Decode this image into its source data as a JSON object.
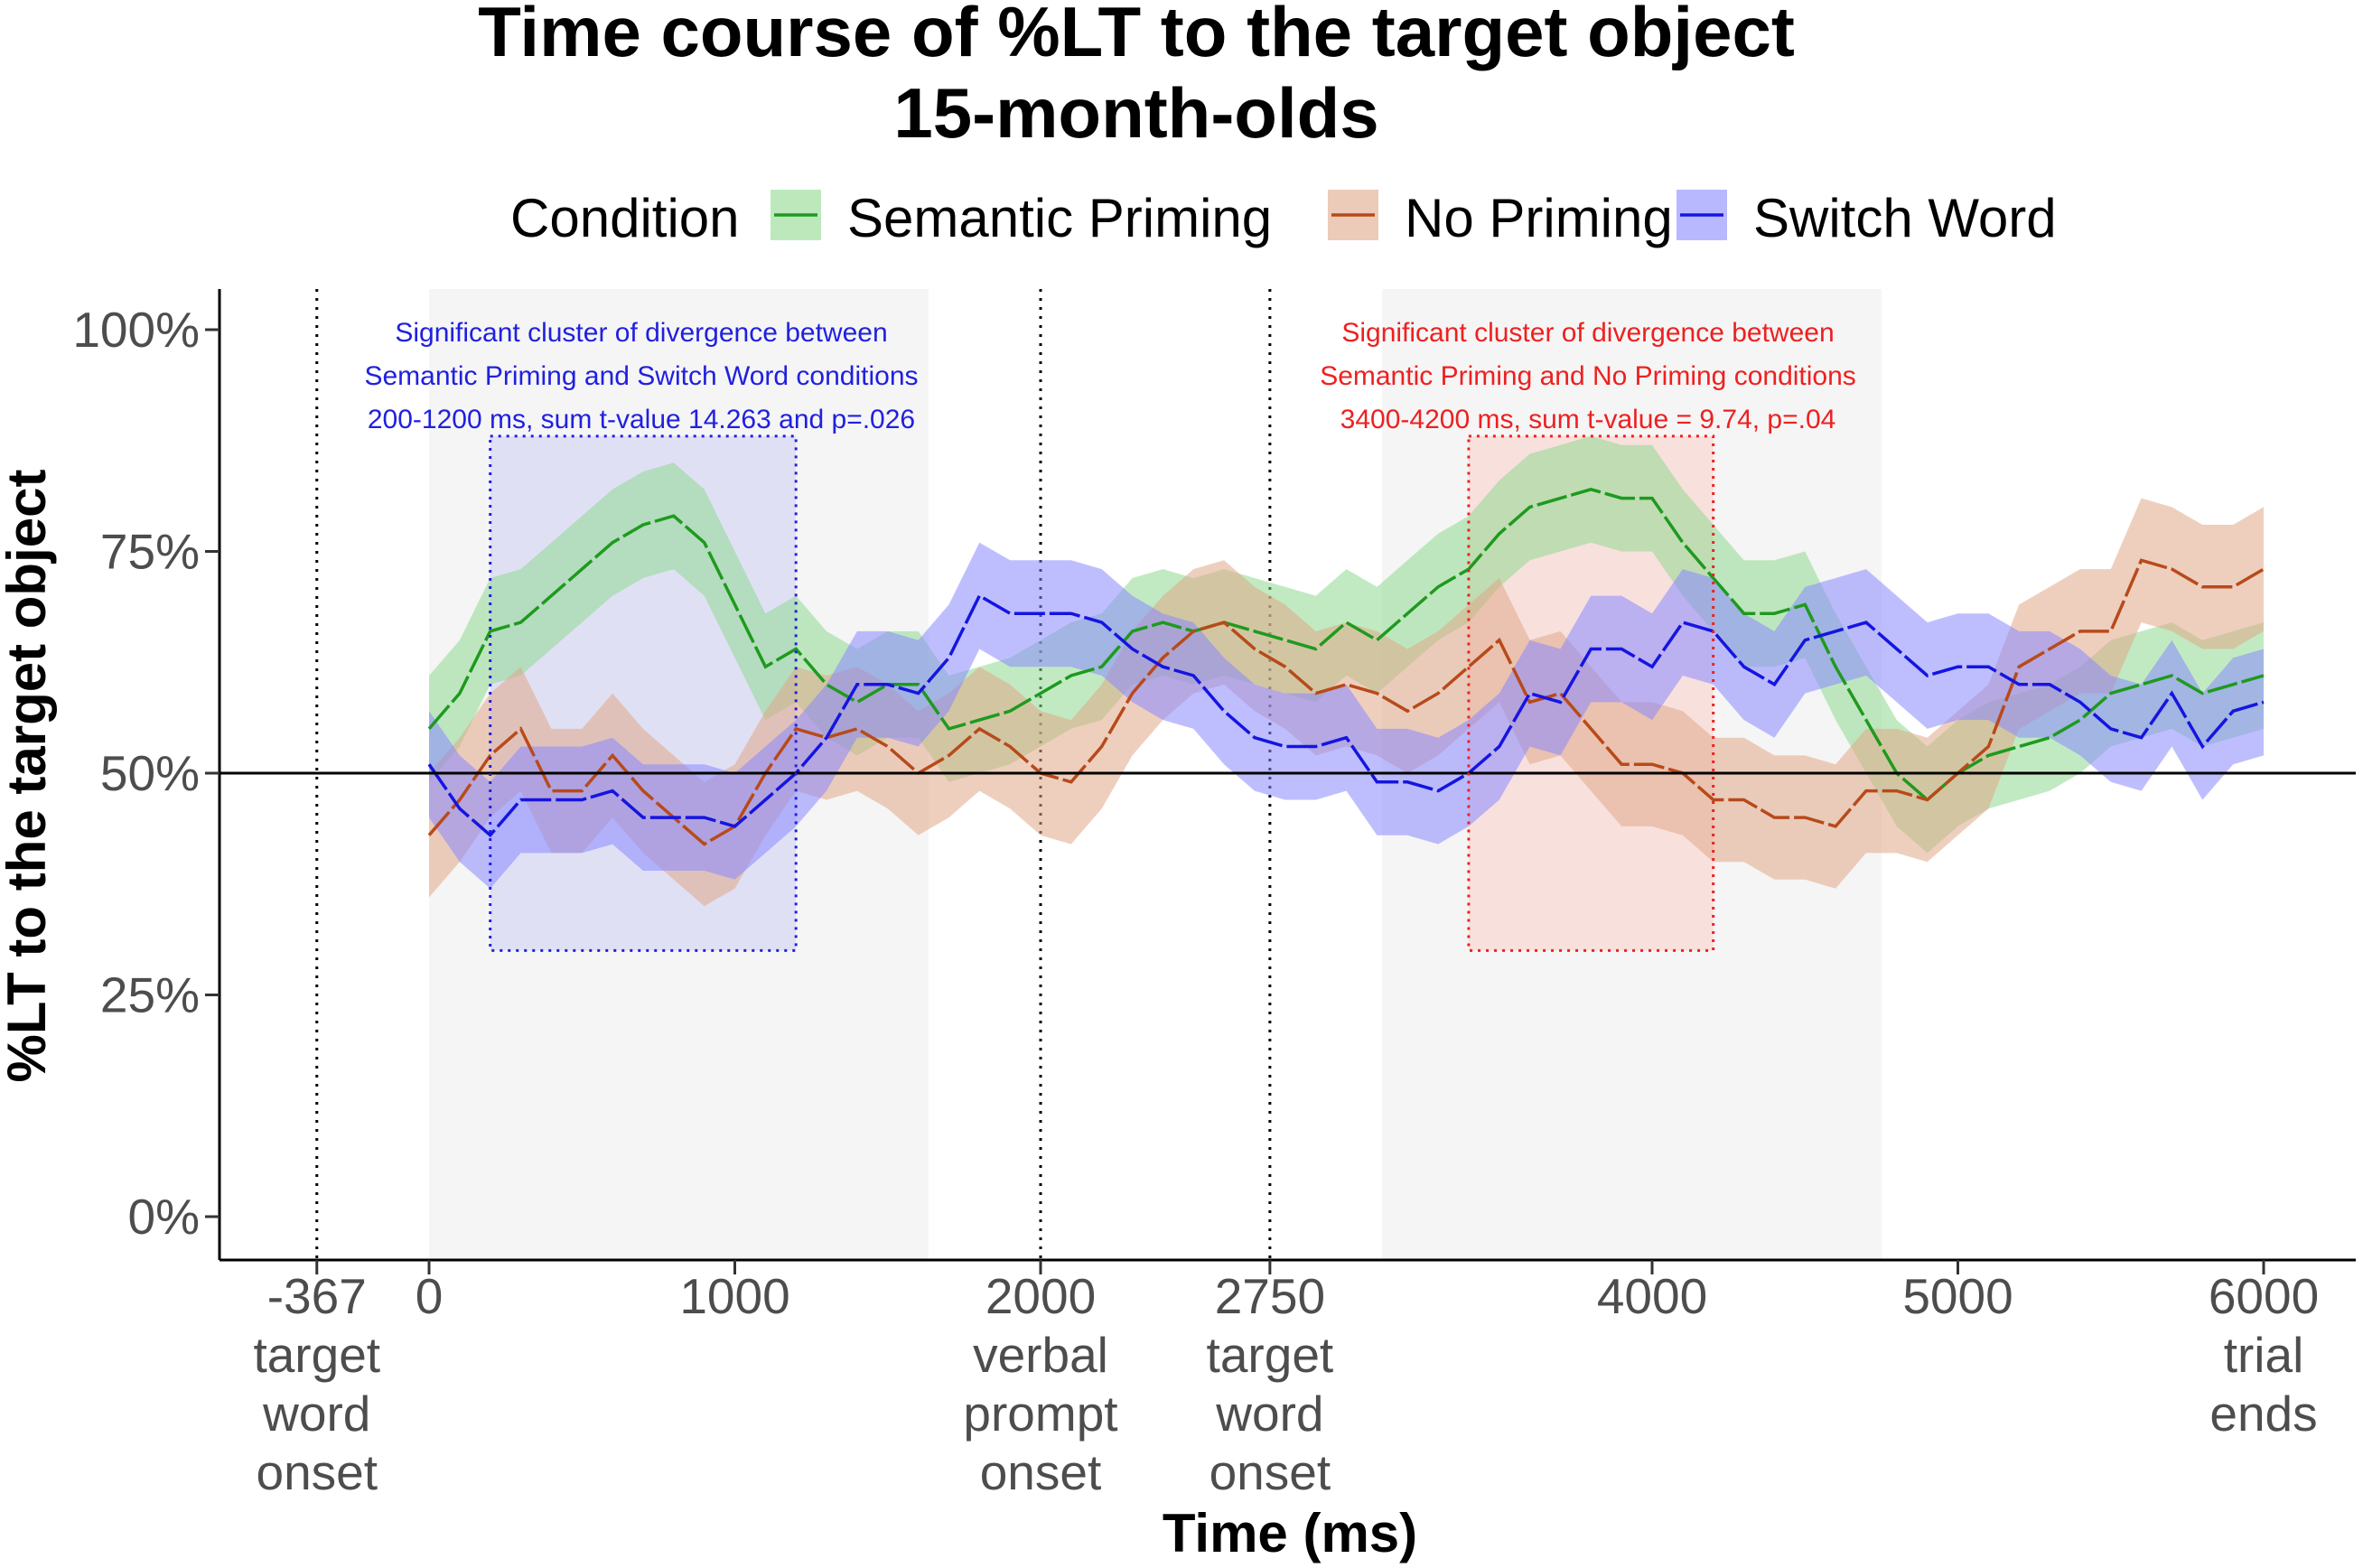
{
  "chart_data": {
    "type": "line",
    "title": "Time course of %LT to the target object",
    "subtitle": "15-month-olds",
    "xlabel": "Time (ms)",
    "ylabel": "%LT to the target object",
    "xlim": [
      -680,
      6320
    ],
    "ylim": [
      0,
      1
    ],
    "y_ticks": [
      {
        "value": 0,
        "label": "0%"
      },
      {
        "value": 0.25,
        "label": "25%"
      },
      {
        "value": 0.5,
        "label": "50%"
      },
      {
        "value": 0.75,
        "label": "75%"
      },
      {
        "value": 1.0,
        "label": "100%"
      }
    ],
    "x_ticks": [
      {
        "value": -367,
        "lines": [
          "-367",
          "target",
          "word",
          "onset"
        ]
      },
      {
        "value": 0,
        "lines": [
          "0"
        ]
      },
      {
        "value": 1000,
        "lines": [
          "1000"
        ]
      },
      {
        "value": 2000,
        "lines": [
          "2000",
          "verbal",
          "prompt",
          "onset"
        ]
      },
      {
        "value": 2750,
        "lines": [
          "2750",
          "target",
          "word",
          "onset"
        ]
      },
      {
        "value": 4000,
        "lines": [
          "4000"
        ]
      },
      {
        "value": 5000,
        "lines": [
          "5000"
        ]
      },
      {
        "value": 6000,
        "lines": [
          "6000",
          "trial",
          "ends"
        ]
      }
    ],
    "vlines_dotted": [
      -367,
      2000,
      2750
    ],
    "hline": 0.5,
    "gray_regions": [
      [
        0,
        1633
      ],
      [
        3117,
        4750
      ]
    ],
    "legend": {
      "title": "Condition",
      "placement": "top",
      "entries": [
        {
          "name": "Semantic Priming",
          "color": "#1e9a1e",
          "fill": "#8fd88f"
        },
        {
          "name": "No Priming",
          "color": "#b84a1a",
          "fill": "#e0a888"
        },
        {
          "name": "Switch Word",
          "color": "#1515e0",
          "fill": "#8888ff"
        }
      ]
    },
    "clusters": [
      {
        "x": [
          200,
          1200
        ],
        "y": [
          0.3,
          0.88
        ],
        "color": "#2020e0",
        "fill": "#d8d8f4",
        "lines": [
          "Significant cluster of divergence between",
          "Semantic Priming and Switch Word conditions",
          "200-1200 ms, sum t-value 14.263 and p=.026"
        ]
      },
      {
        "x": [
          3400,
          4200
        ],
        "y": [
          0.3,
          0.88
        ],
        "color": "#ee2020",
        "fill": "#f8d8d4",
        "lines": [
          "Significant cluster of divergence between",
          "Semantic Priming and No Priming conditions",
          "3400-4200 ms, sum t-value = 9.74, p=.04"
        ]
      }
    ],
    "x": [
      0,
      100,
      200,
      300,
      400,
      500,
      600,
      700,
      800,
      900,
      1000,
      1100,
      1200,
      1300,
      1400,
      1500,
      1600,
      1700,
      1800,
      1900,
      2000,
      2100,
      2200,
      2300,
      2400,
      2500,
      2600,
      2700,
      2800,
      2900,
      3000,
      3100,
      3200,
      3300,
      3400,
      3500,
      3600,
      3700,
      3800,
      3900,
      4000,
      4100,
      4200,
      4300,
      4400,
      4500,
      4600,
      4700,
      4800,
      4900,
      5000,
      5100,
      5200,
      5300,
      5400,
      5500,
      5600,
      5700,
      5800,
      5900,
      6000
    ],
    "series": [
      {
        "name": "Semantic Priming",
        "color": "#1e9a1e",
        "fill": "#8fd88f",
        "values": [
          0.55,
          0.59,
          0.66,
          0.67,
          0.7,
          0.73,
          0.76,
          0.78,
          0.79,
          0.76,
          0.69,
          0.62,
          0.64,
          0.6,
          0.58,
          0.6,
          0.6,
          0.55,
          0.56,
          0.57,
          0.59,
          0.61,
          0.62,
          0.66,
          0.67,
          0.66,
          0.67,
          0.66,
          0.65,
          0.64,
          0.67,
          0.65,
          0.68,
          0.71,
          0.73,
          0.77,
          0.8,
          0.81,
          0.82,
          0.81,
          0.81,
          0.76,
          0.72,
          0.68,
          0.68,
          0.69,
          0.62,
          0.56,
          0.5,
          0.47,
          0.5,
          0.52,
          0.53,
          0.54,
          0.56,
          0.59,
          0.6,
          0.61,
          0.59,
          0.6,
          0.61
        ],
        "ci": 0.06
      },
      {
        "name": "No Priming",
        "color": "#b84a1a",
        "fill": "#e0a888",
        "values": [
          0.43,
          0.47,
          0.52,
          0.55,
          0.48,
          0.48,
          0.52,
          0.48,
          0.45,
          0.42,
          0.44,
          0.5,
          0.55,
          0.54,
          0.55,
          0.53,
          0.5,
          0.52,
          0.55,
          0.53,
          0.5,
          0.49,
          0.53,
          0.59,
          0.63,
          0.66,
          0.67,
          0.64,
          0.62,
          0.59,
          0.6,
          0.59,
          0.57,
          0.59,
          0.62,
          0.65,
          0.58,
          0.59,
          0.55,
          0.51,
          0.51,
          0.5,
          0.47,
          0.47,
          0.45,
          0.45,
          0.44,
          0.48,
          0.48,
          0.47,
          0.5,
          0.53,
          0.62,
          0.64,
          0.66,
          0.66,
          0.74,
          0.73,
          0.71,
          0.71,
          0.73
        ],
        "ci": 0.07
      },
      {
        "name": "Switch Word",
        "color": "#1515e0",
        "fill": "#8888ff",
        "values": [
          0.51,
          0.46,
          0.43,
          0.47,
          0.47,
          0.47,
          0.48,
          0.45,
          0.45,
          0.45,
          0.44,
          0.47,
          0.5,
          0.54,
          0.6,
          0.6,
          0.59,
          0.63,
          0.7,
          0.68,
          0.68,
          0.68,
          0.67,
          0.64,
          0.62,
          0.61,
          0.57,
          0.54,
          0.53,
          0.53,
          0.54,
          0.49,
          0.49,
          0.48,
          0.5,
          0.53,
          0.59,
          0.58,
          0.64,
          0.64,
          0.62,
          0.67,
          0.66,
          0.62,
          0.6,
          0.65,
          0.66,
          0.67,
          0.64,
          0.61,
          0.62,
          0.62,
          0.6,
          0.6,
          0.58,
          0.55,
          0.54,
          0.59,
          0.53,
          0.57,
          0.58
        ],
        "ci": 0.06
      }
    ]
  }
}
